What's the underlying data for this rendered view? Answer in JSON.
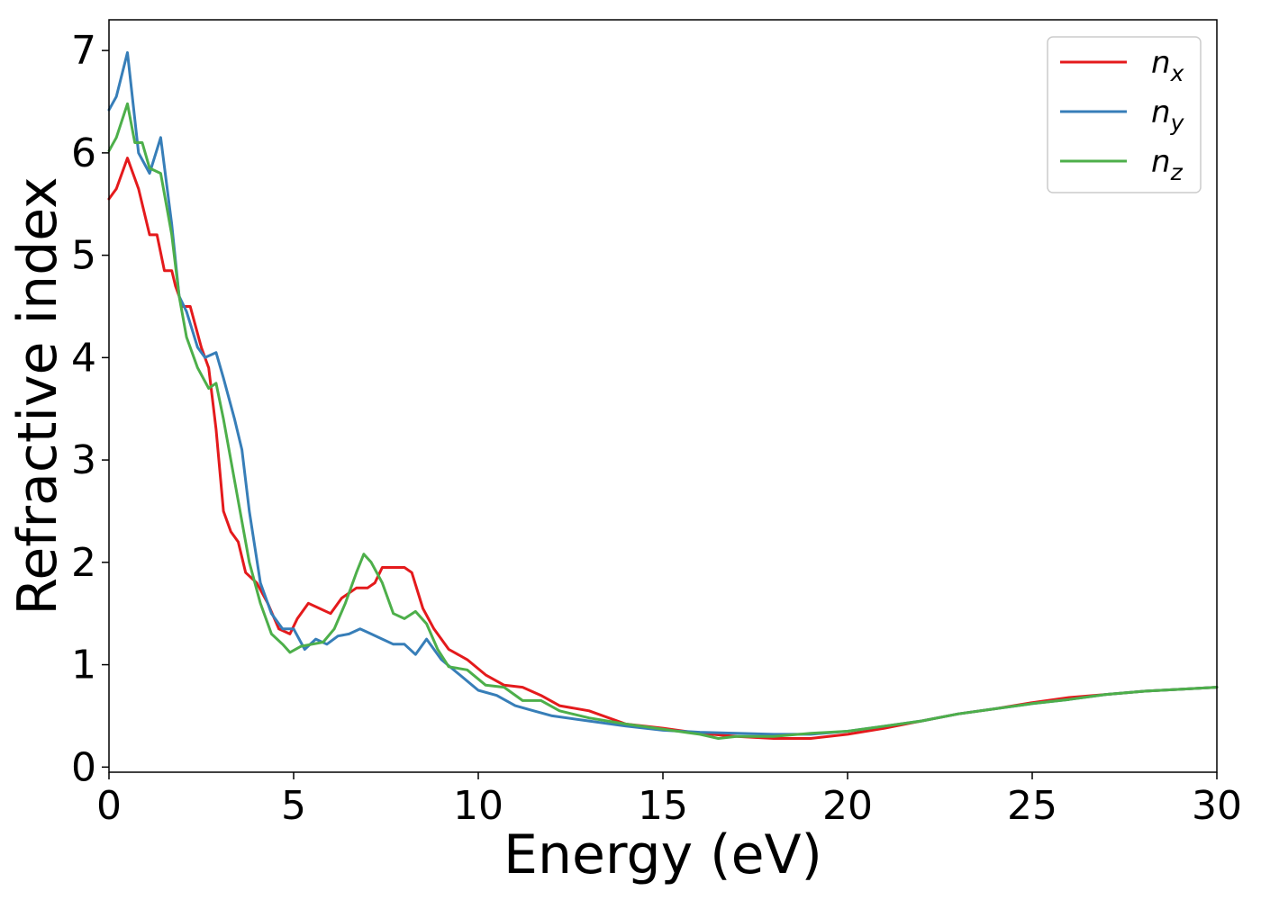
{
  "chart_data": {
    "type": "line",
    "xlabel": "Energy (eV)",
    "ylabel": "Refractive index",
    "xlim": [
      0,
      30
    ],
    "ylim": [
      -0.05,
      7.3
    ],
    "xticks": [
      0,
      5,
      10,
      15,
      20,
      25,
      30
    ],
    "yticks": [
      0,
      1,
      2,
      3,
      4,
      5,
      6,
      7
    ],
    "grid": false,
    "legend_position": "top-right",
    "series": [
      {
        "name": "n",
        "subscript": "x",
        "color": "#e41a1c",
        "x": [
          0,
          0.2,
          0.5,
          0.8,
          1.1,
          1.3,
          1.5,
          1.7,
          1.8,
          2.0,
          2.2,
          2.5,
          2.7,
          2.9,
          3.1,
          3.3,
          3.5,
          3.7,
          4.0,
          4.3,
          4.6,
          4.9,
          5.1,
          5.4,
          5.7,
          6.0,
          6.3,
          6.7,
          7.0,
          7.2,
          7.4,
          7.7,
          8.0,
          8.2,
          8.5,
          8.8,
          9.2,
          9.7,
          10.2,
          10.7,
          11.2,
          11.7,
          12.2,
          13.0,
          14.0,
          15.0,
          16.0,
          17.0,
          18.0,
          19.0,
          20.0,
          21.0,
          22.0,
          23.0,
          24.0,
          25.0,
          26.0,
          27.0,
          28.0,
          29.0,
          30.0
        ],
        "y": [
          5.55,
          5.65,
          5.95,
          5.65,
          5.2,
          5.2,
          4.85,
          4.85,
          4.7,
          4.5,
          4.5,
          4.1,
          3.9,
          3.3,
          2.5,
          2.3,
          2.2,
          1.9,
          1.8,
          1.6,
          1.35,
          1.3,
          1.45,
          1.6,
          1.55,
          1.5,
          1.65,
          1.75,
          1.75,
          1.8,
          1.95,
          1.95,
          1.95,
          1.9,
          1.55,
          1.35,
          1.15,
          1.05,
          0.9,
          0.8,
          0.78,
          0.7,
          0.6,
          0.55,
          0.42,
          0.38,
          0.33,
          0.3,
          0.28,
          0.28,
          0.32,
          0.38,
          0.45,
          0.52,
          0.57,
          0.63,
          0.68,
          0.71,
          0.74,
          0.76,
          0.78
        ]
      },
      {
        "name": "n",
        "subscript": "y",
        "color": "#377eb8",
        "x": [
          0,
          0.2,
          0.5,
          0.8,
          1.1,
          1.4,
          1.7,
          1.9,
          2.1,
          2.4,
          2.6,
          2.9,
          3.1,
          3.4,
          3.6,
          3.8,
          4.1,
          4.4,
          4.7,
          5.0,
          5.3,
          5.6,
          5.9,
          6.2,
          6.5,
          6.8,
          7.1,
          7.4,
          7.7,
          8.0,
          8.3,
          8.6,
          9.0,
          9.5,
          10.0,
          10.5,
          11.0,
          11.5,
          12.0,
          13.0,
          14.0,
          15.0,
          16.0,
          17.0,
          18.0,
          19.0,
          20.0,
          21.0,
          22.0,
          23.0,
          24.0,
          25.0,
          26.0,
          27.0,
          28.0,
          29.0,
          30.0
        ],
        "y": [
          6.42,
          6.55,
          6.98,
          6.0,
          5.8,
          6.15,
          5.3,
          4.6,
          4.45,
          4.1,
          4.0,
          4.05,
          3.8,
          3.4,
          3.1,
          2.5,
          1.8,
          1.5,
          1.35,
          1.35,
          1.15,
          1.25,
          1.2,
          1.28,
          1.3,
          1.35,
          1.3,
          1.25,
          1.2,
          1.2,
          1.1,
          1.25,
          1.05,
          0.9,
          0.75,
          0.7,
          0.6,
          0.55,
          0.5,
          0.45,
          0.4,
          0.36,
          0.34,
          0.33,
          0.32,
          0.32,
          0.35,
          0.4,
          0.45,
          0.52,
          0.57,
          0.62,
          0.66,
          0.71,
          0.74,
          0.76,
          0.78
        ]
      },
      {
        "name": "n",
        "subscript": "z",
        "color": "#4daf4a",
        "x": [
          0,
          0.2,
          0.5,
          0.7,
          0.9,
          1.1,
          1.4,
          1.7,
          1.9,
          2.1,
          2.4,
          2.7,
          2.9,
          3.1,
          3.3,
          3.5,
          3.8,
          4.1,
          4.4,
          4.7,
          4.9,
          5.2,
          5.5,
          5.8,
          6.1,
          6.4,
          6.7,
          6.9,
          7.1,
          7.4,
          7.7,
          8.0,
          8.3,
          8.6,
          8.9,
          9.2,
          9.7,
          10.2,
          10.7,
          11.2,
          11.7,
          12.2,
          13.0,
          14.0,
          15.0,
          16.0,
          16.5,
          17.0,
          18.0,
          19.0,
          20.0,
          21.0,
          22.0,
          23.0,
          24.0,
          25.0,
          26.0,
          27.0,
          28.0,
          29.0,
          30.0
        ],
        "y": [
          6.02,
          6.15,
          6.48,
          6.1,
          6.1,
          5.85,
          5.8,
          5.2,
          4.6,
          4.2,
          3.9,
          3.7,
          3.75,
          3.4,
          3.0,
          2.6,
          2.0,
          1.6,
          1.3,
          1.2,
          1.12,
          1.18,
          1.2,
          1.22,
          1.35,
          1.6,
          1.9,
          2.08,
          2.0,
          1.8,
          1.5,
          1.45,
          1.52,
          1.4,
          1.15,
          0.98,
          0.95,
          0.8,
          0.78,
          0.65,
          0.65,
          0.55,
          0.48,
          0.42,
          0.37,
          0.32,
          0.28,
          0.3,
          0.3,
          0.33,
          0.35,
          0.4,
          0.45,
          0.52,
          0.57,
          0.62,
          0.66,
          0.71,
          0.74,
          0.76,
          0.78
        ]
      }
    ]
  }
}
